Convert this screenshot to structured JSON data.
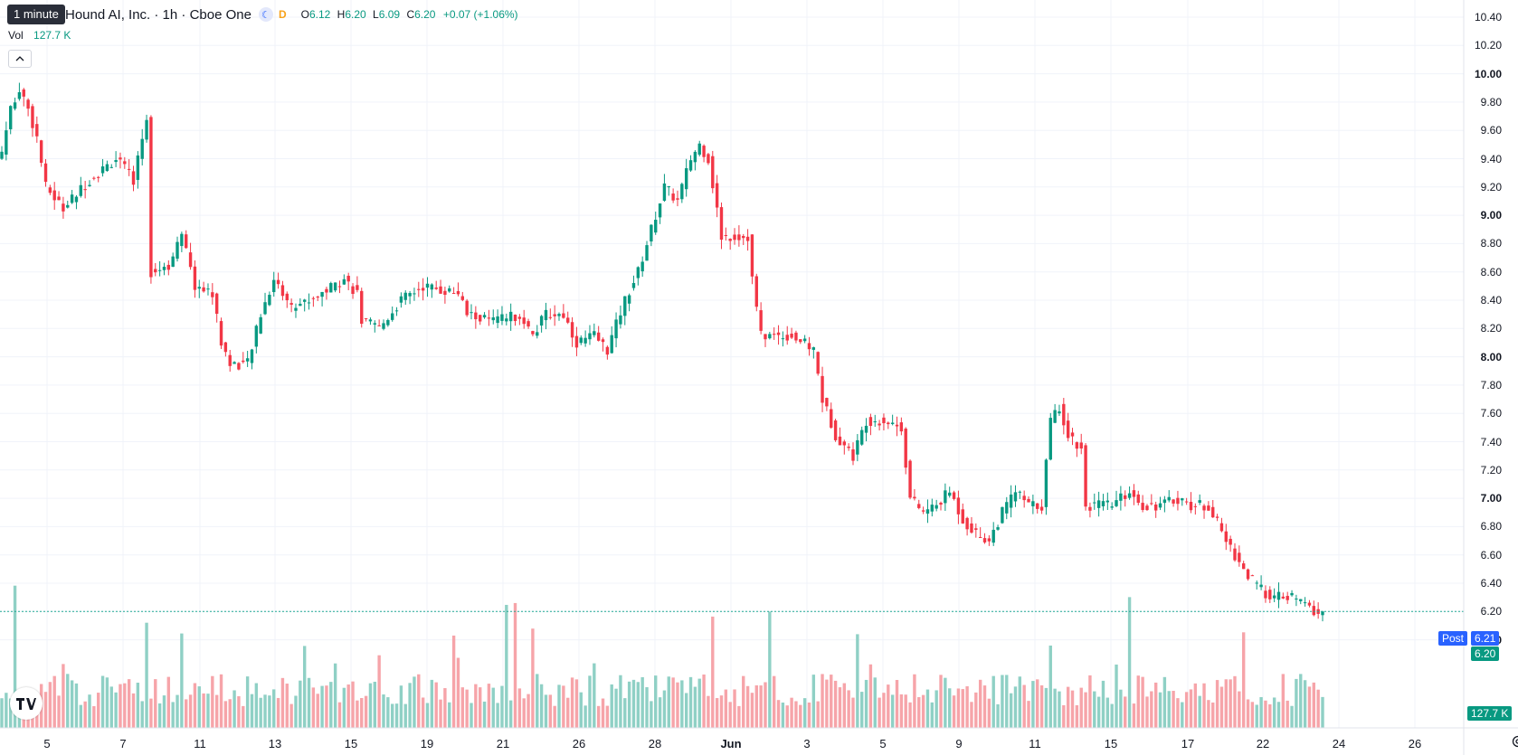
{
  "legend": {
    "tooltip": "1 minute",
    "title": "Hound AI, Inc. · 1h · Cboe One",
    "session_icon": "moon-icon",
    "delay_badge": "D",
    "open_label": "O",
    "open": "6.12",
    "high_label": "H",
    "high": "6.20",
    "low_label": "L",
    "low": "6.09",
    "close_label": "C",
    "close": "6.20",
    "change": "+0.07 (+1.06%)"
  },
  "volume_legend": {
    "label": "Vol",
    "value": "127.7 K"
  },
  "badges": {
    "post_label": "Post",
    "post_price": "6.21",
    "last_price": "6.20",
    "volume_value": "127.7 K"
  },
  "colors": {
    "up": "#089981",
    "down": "#f23645",
    "up_vol": "#8fd0c5",
    "down_vol": "#f6a4a9",
    "post": "#2962ff"
  },
  "chart_data": {
    "type": "candlestick",
    "title": "Hound AI, Inc. · 1h · Cboe One",
    "y_ticks": [
      "10.40",
      "10.20",
      "10.00",
      "9.80",
      "9.60",
      "9.40",
      "9.20",
      "9.00",
      "8.80",
      "8.60",
      "8.40",
      "8.20",
      "8.00",
      "7.80",
      "7.60",
      "7.40",
      "7.20",
      "7.00",
      "6.80",
      "6.60",
      "6.40",
      "6.20",
      "6.00"
    ],
    "bold_y_ticks": [
      "10.00",
      "9.00",
      "8.00",
      "7.00",
      "6.00"
    ],
    "ylim": [
      5.75,
      10.45
    ],
    "x_ticks": [
      "5",
      "7",
      "11",
      "13",
      "15",
      "19",
      "21",
      "26",
      "28",
      "Jun",
      "3",
      "5",
      "9",
      "11",
      "15",
      "17",
      "22",
      "24",
      "26"
    ],
    "bold_x_ticks": [
      "Jun"
    ],
    "bars_per_session": 7,
    "price_anchors": [
      [
        0,
        9.45
      ],
      [
        2,
        9.75
      ],
      [
        4,
        9.9
      ],
      [
        6,
        9.75
      ],
      [
        8,
        9.55
      ],
      [
        10,
        9.2
      ],
      [
        14,
        9.05
      ],
      [
        20,
        9.25
      ],
      [
        26,
        9.4
      ],
      [
        30,
        9.25
      ],
      [
        33,
        9.7
      ],
      [
        34,
        8.6
      ],
      [
        38,
        8.65
      ],
      [
        41,
        8.85
      ],
      [
        44,
        8.5
      ],
      [
        48,
        8.45
      ],
      [
        50,
        8.1
      ],
      [
        52,
        7.95
      ],
      [
        56,
        7.95
      ],
      [
        59,
        8.3
      ],
      [
        62,
        8.55
      ],
      [
        66,
        8.35
      ],
      [
        70,
        8.4
      ],
      [
        78,
        8.55
      ],
      [
        81,
        8.45
      ],
      [
        82,
        8.25
      ],
      [
        86,
        8.2
      ],
      [
        91,
        8.4
      ],
      [
        96,
        8.5
      ],
      [
        104,
        8.45
      ],
      [
        106,
        8.3
      ],
      [
        112,
        8.25
      ],
      [
        118,
        8.3
      ],
      [
        121,
        8.15
      ],
      [
        124,
        8.3
      ],
      [
        128,
        8.3
      ],
      [
        131,
        8.1
      ],
      [
        135,
        8.15
      ],
      [
        138,
        8.05
      ],
      [
        142,
        8.4
      ],
      [
        145,
        8.6
      ],
      [
        148,
        8.9
      ],
      [
        151,
        9.2
      ],
      [
        154,
        9.1
      ],
      [
        157,
        9.4
      ],
      [
        159,
        9.5
      ],
      [
        161,
        9.4
      ],
      [
        164,
        8.85
      ],
      [
        168,
        8.85
      ],
      [
        170,
        8.85
      ],
      [
        171,
        8.55
      ],
      [
        173,
        8.15
      ],
      [
        176,
        8.15
      ],
      [
        180,
        8.15
      ],
      [
        185,
        8.05
      ],
      [
        187,
        7.7
      ],
      [
        190,
        7.45
      ],
      [
        194,
        7.3
      ],
      [
        197,
        7.55
      ],
      [
        201,
        7.55
      ],
      [
        205,
        7.5
      ],
      [
        207,
        7.0
      ],
      [
        210,
        6.9
      ],
      [
        213,
        6.95
      ],
      [
        216,
        7.05
      ],
      [
        219,
        6.85
      ],
      [
        222,
        6.75
      ],
      [
        225,
        6.7
      ],
      [
        228,
        6.9
      ],
      [
        231,
        7.05
      ],
      [
        234,
        6.95
      ],
      [
        237,
        6.95
      ],
      [
        239,
        7.55
      ],
      [
        241,
        7.65
      ],
      [
        243,
        7.45
      ],
      [
        246,
        7.35
      ],
      [
        247,
        6.95
      ],
      [
        250,
        6.95
      ],
      [
        253,
        6.95
      ],
      [
        257,
        7.05
      ],
      [
        260,
        6.95
      ],
      [
        264,
        6.95
      ],
      [
        268,
        7.0
      ],
      [
        271,
        6.95
      ],
      [
        275,
        6.95
      ],
      [
        279,
        6.7
      ],
      [
        281,
        6.6
      ],
      [
        284,
        6.45
      ],
      [
        287,
        6.35
      ],
      [
        290,
        6.3
      ],
      [
        294,
        6.3
      ],
      [
        297,
        6.25
      ],
      [
        299,
        6.2
      ],
      [
        301,
        6.18
      ]
    ],
    "volume_ylim": [
      0,
      1.0
    ]
  }
}
